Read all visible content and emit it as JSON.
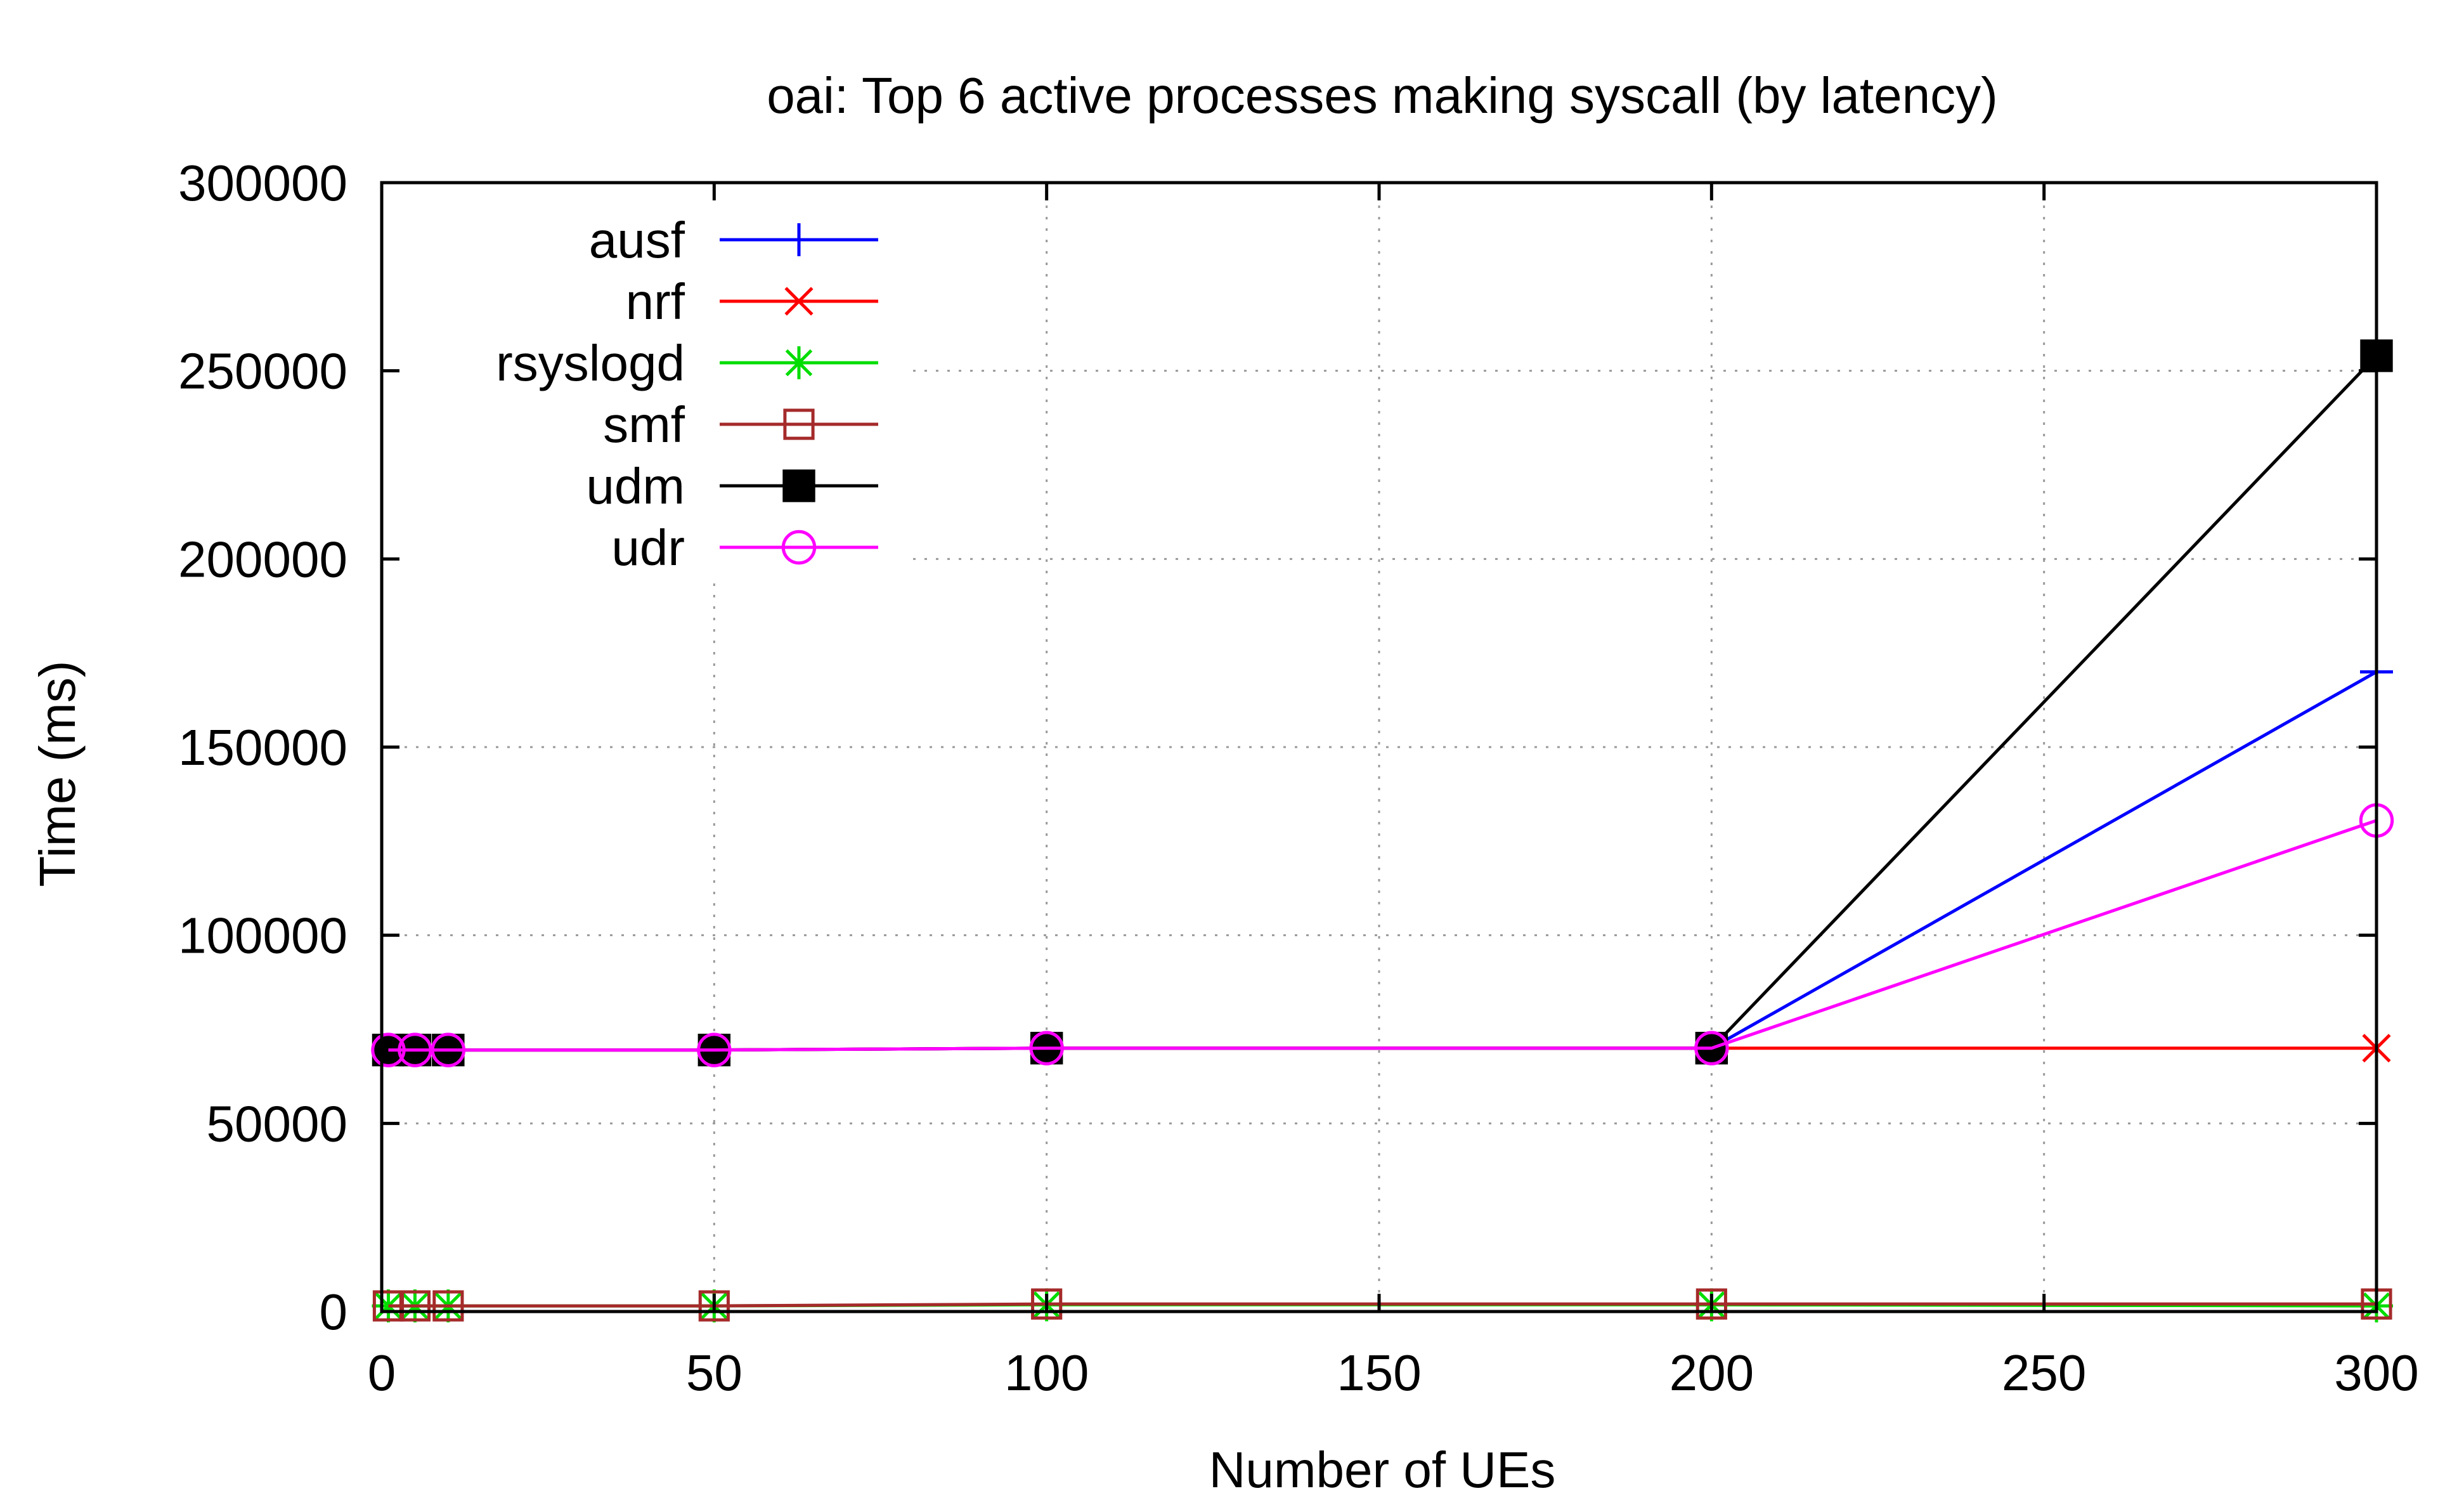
{
  "chart_data": {
    "type": "line",
    "title": "oai: Top 6 active processes making syscall (by latency)",
    "xlabel": "Number of UEs",
    "ylabel": "Time (ms)",
    "xlim": [
      0,
      300
    ],
    "ylim": [
      0,
      300000
    ],
    "xticks": [
      "0",
      "50",
      "100",
      "150",
      "200",
      "250",
      "300"
    ],
    "yticks": [
      "0",
      "50000",
      "100000",
      "150000",
      "200000",
      "250000",
      "300000"
    ],
    "grid": true,
    "legend_position": "top-left",
    "x": [
      1,
      5,
      10,
      50,
      100,
      200,
      300
    ],
    "series": [
      {
        "name": "ausf",
        "color": "#0000ff",
        "marker": "plus",
        "values": [
          69500,
          69500,
          69500,
          69500,
          70000,
          70000,
          170000
        ]
      },
      {
        "name": "nrf",
        "color": "#ff0000",
        "marker": "cross",
        "values": [
          69500,
          69500,
          69500,
          69500,
          70000,
          70000,
          70000
        ]
      },
      {
        "name": "rsyslogd",
        "color": "#00dd00",
        "marker": "asterisk",
        "values": [
          1500,
          1500,
          1500,
          1500,
          1800,
          1800,
          1500
        ]
      },
      {
        "name": "smf",
        "color": "#a52a2a",
        "marker": "open-square",
        "values": [
          1500,
          1500,
          1500,
          1500,
          2000,
          2000,
          2000
        ]
      },
      {
        "name": "udm",
        "color": "#000000",
        "marker": "filled-square",
        "values": [
          69500,
          69500,
          69500,
          69500,
          70000,
          70000,
          254000
        ]
      },
      {
        "name": "udr",
        "color": "#ff00ff",
        "marker": "open-circle",
        "values": [
          69500,
          69500,
          69500,
          69500,
          70000,
          70000,
          130500
        ]
      }
    ]
  }
}
